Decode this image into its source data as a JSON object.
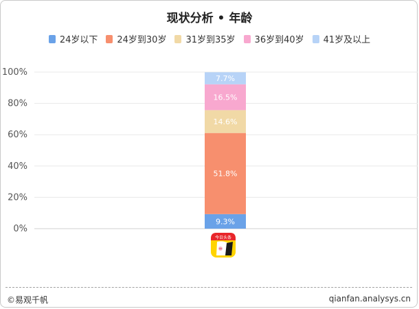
{
  "header": {
    "title": "现状分析 • 年龄"
  },
  "footer": {
    "brand": "©易观千帆",
    "url": "qianfan.analysys.cn"
  },
  "app_icon": {
    "icon_name": "app-logo-icon",
    "text": "今日头条"
  },
  "colors": {
    "s1": "#6aa2e8",
    "s2": "#f78f6e",
    "s3": "#f1d9a6",
    "s4": "#f8a8cf",
    "s5": "#b7d3f7",
    "grid": "#e8e8e8",
    "axis_text": "#555555"
  },
  "chart_data": {
    "type": "bar",
    "stacked": true,
    "categories": [
      ""
    ],
    "series": [
      {
        "name": "24岁以下",
        "values": [
          9.3
        ],
        "label": "9.3%"
      },
      {
        "name": "24岁到30岁",
        "values": [
          51.8
        ],
        "label": "51.8%"
      },
      {
        "name": "31岁到35岁",
        "values": [
          14.6
        ],
        "label": "14.6%"
      },
      {
        "name": "36岁到40岁",
        "values": [
          16.5
        ],
        "label": "16.5%"
      },
      {
        "name": "41岁及以上",
        "values": [
          7.7
        ],
        "label": "7.7%"
      }
    ],
    "ylim": [
      0,
      100
    ],
    "yticks": [
      "0%",
      "20%",
      "40%",
      "60%",
      "80%",
      "100%"
    ],
    "ytick_values": [
      0,
      20,
      40,
      60,
      80,
      100
    ],
    "grid": true,
    "legend_position": "top"
  }
}
